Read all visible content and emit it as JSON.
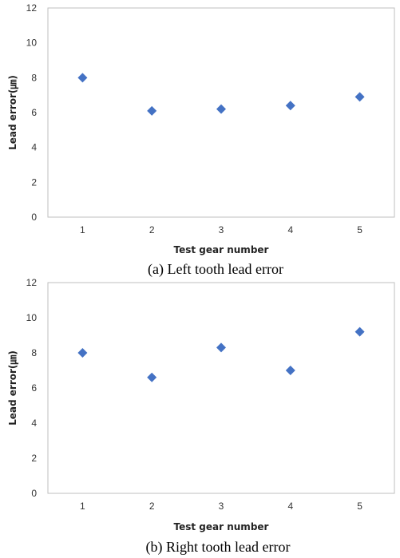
{
  "chart_data": [
    {
      "type": "scatter",
      "caption": "(a) Left tooth lead error",
      "xlabel": "Test gear number",
      "ylabel": "Lead error(㎛)",
      "x": [
        1,
        2,
        3,
        4,
        5
      ],
      "y": [
        8.0,
        6.1,
        6.2,
        6.4,
        6.9
      ],
      "xticks": [
        "1",
        "2",
        "3",
        "4",
        "5"
      ],
      "yticks": [
        "0",
        "2",
        "4",
        "6",
        "8",
        "10",
        "12"
      ],
      "ylim": [
        0,
        12
      ],
      "grid": false,
      "marker": "diamond",
      "color": "#4472C4"
    },
    {
      "type": "scatter",
      "caption": "(b) Right tooth lead error",
      "xlabel": "Test gear number",
      "ylabel": "Lead error(㎛)",
      "x": [
        1,
        2,
        3,
        4,
        5
      ],
      "y": [
        8.0,
        6.6,
        8.3,
        7.0,
        9.2
      ],
      "xticks": [
        "1",
        "2",
        "3",
        "4",
        "5"
      ],
      "yticks": [
        "0",
        "2",
        "4",
        "6",
        "8",
        "10",
        "12"
      ],
      "ylim": [
        0,
        12
      ],
      "grid": false,
      "marker": "diamond",
      "color": "#4472C4"
    }
  ]
}
